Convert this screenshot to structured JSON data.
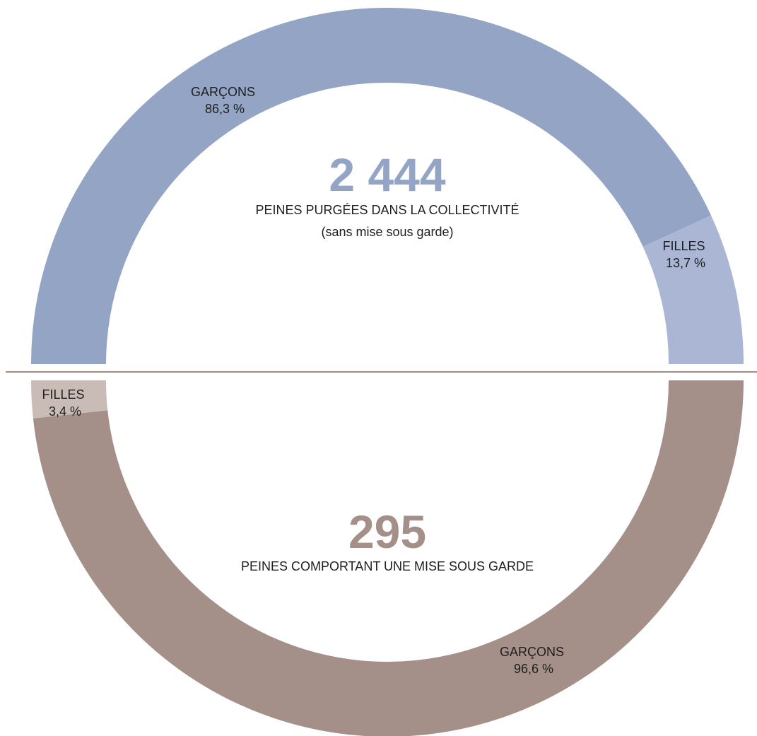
{
  "chart_data": [
    {
      "type": "pie",
      "total": "2 444",
      "caption": "PEINES PURGÉES DANS LA COLLECTIVITÉ",
      "subcaption": "(sans mise sous garde)",
      "slices": [
        {
          "name": "GARÇONS",
          "value": 86.3,
          "value_label": "86,3 %",
          "color": "#93a4c5"
        },
        {
          "name": "FILLES",
          "value": 13.7,
          "value_label": "13,7 %",
          "color": "#aab6d4"
        }
      ],
      "accent_color": "#93a4c5"
    },
    {
      "type": "pie",
      "total": "295",
      "caption": "PEINES COMPORTANT UNE MISE SOUS GARDE",
      "slices": [
        {
          "name": "FILLES",
          "value": 3.4,
          "value_label": "3,4 %",
          "color": "#c9bcb7"
        },
        {
          "name": "GARÇONS",
          "value": 96.6,
          "value_label": "96,6 %",
          "color": "#a59089"
        }
      ],
      "accent_color": "#a59089"
    }
  ],
  "divider_color": "#a38b83"
}
